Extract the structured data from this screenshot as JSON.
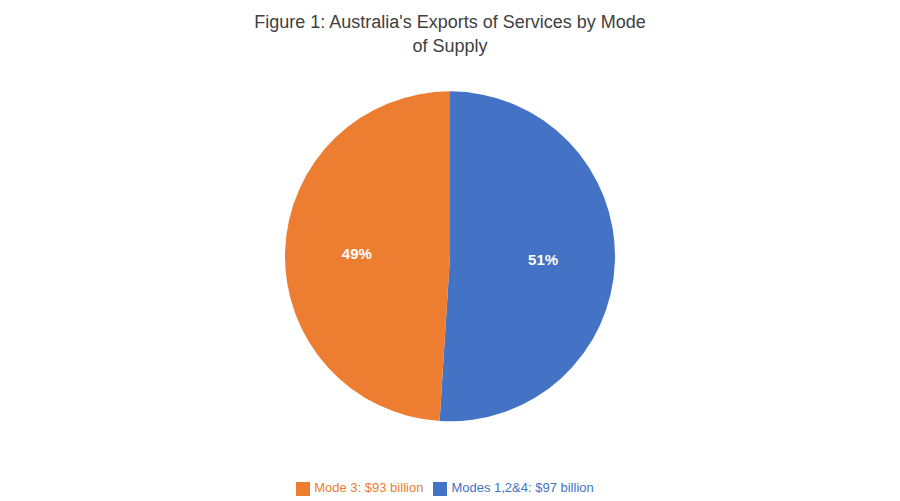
{
  "chart_data": {
    "type": "pie",
    "title": "Figure 1: Australia's Exports of Services by Mode\nof Supply",
    "categories": [
      "Modes 1,2&4:  $97 billion",
      "Mode 3: $93 billion"
    ],
    "values": [
      51,
      49
    ],
    "value_labels": [
      "51%",
      "49%"
    ],
    "colors": [
      "#4472C4",
      "#ED7D31"
    ],
    "data_labels": true,
    "legend": "bottom"
  }
}
